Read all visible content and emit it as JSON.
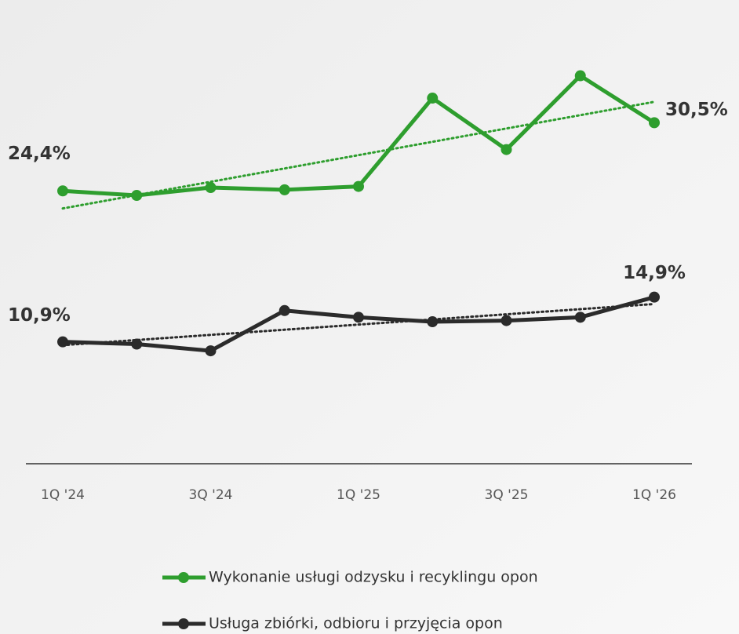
{
  "chart_data": {
    "type": "line",
    "categories": [
      "1Q '24",
      null,
      "3Q '24",
      null,
      "1Q '25",
      null,
      "3Q '25",
      null,
      "1Q '26"
    ],
    "series": [
      {
        "name": "Wykonanie usługi odzysku i recyklingu opon",
        "color": "#2e9e2e",
        "values": [
          24.4,
          24.0,
          24.7,
          24.5,
          24.8,
          32.7,
          28.1,
          34.7,
          30.5
        ],
        "value_labels": [
          "24,4%",
          null,
          null,
          null,
          null,
          null,
          null,
          null,
          "30,5%"
        ]
      },
      {
        "name": "Usługa zbiórki, odbioru i przyjęcia opon",
        "color": "#2b2b2b",
        "values": [
          10.9,
          10.7,
          10.1,
          13.7,
          13.1,
          12.7,
          12.8,
          13.1,
          14.9
        ],
        "value_labels": [
          "10,9%",
          null,
          null,
          null,
          null,
          null,
          null,
          null,
          "14,9%"
        ]
      }
    ],
    "ylim": [
      0,
      40
    ],
    "trendline": true,
    "legend": "bottom"
  }
}
